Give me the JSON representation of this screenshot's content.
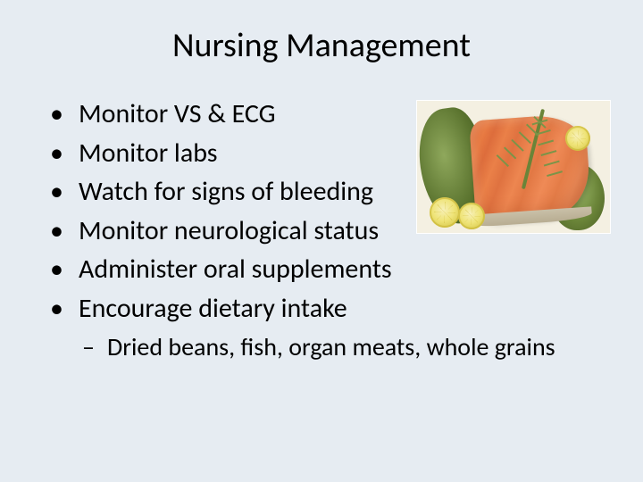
{
  "title": "Nursing Management",
  "bullets": [
    "Monitor VS & ECG",
    "Monitor labs",
    "Watch for signs of bleeding",
    "Monitor neurological status",
    "Administer oral supplements",
    "Encourage dietary intake"
  ],
  "sub_bullets": [
    "Dried beans, fish, organ meats, whole grains"
  ],
  "colors": {
    "background": "#e6ecf2",
    "text": "#000000"
  },
  "image": {
    "description": "salmon-fillet-with-lemon-and-greens",
    "position": "top-right"
  }
}
